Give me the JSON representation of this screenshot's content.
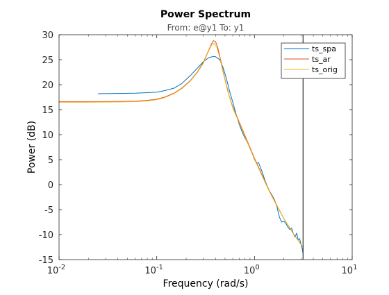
{
  "chart_data": {
    "type": "line",
    "title": "Power Spectrum",
    "subtitle": "From: e@y1  To: y1",
    "xlabel": "Frequency  (rad/s)",
    "ylabel": "Power (dB)",
    "xscale": "log",
    "xlim": [
      0.01,
      10
    ],
    "ylim": [
      -15,
      30
    ],
    "x_ticks": [
      {
        "value": 0.01,
        "base": "10",
        "exp": "-2"
      },
      {
        "value": 0.1,
        "base": "10",
        "exp": "-1"
      },
      {
        "value": 1,
        "base": "10",
        "exp": "0"
      },
      {
        "value": 10,
        "base": "10",
        "exp": "1"
      }
    ],
    "y_ticks": [
      -15,
      -10,
      -5,
      0,
      5,
      10,
      15,
      20,
      25,
      30
    ],
    "grid": false,
    "legend_position": "top-right",
    "vertical_line_x": 3.14,
    "series": [
      {
        "name": "ts_spa",
        "color": "#0072BD",
        "points": [
          [
            0.025,
            18.2
          ],
          [
            0.04,
            18.25
          ],
          [
            0.06,
            18.3
          ],
          [
            0.08,
            18.4
          ],
          [
            0.1,
            18.5
          ],
          [
            0.12,
            18.8
          ],
          [
            0.15,
            19.3
          ],
          [
            0.18,
            20.2
          ],
          [
            0.22,
            21.8
          ],
          [
            0.26,
            23.3
          ],
          [
            0.3,
            24.6
          ],
          [
            0.34,
            25.4
          ],
          [
            0.37,
            25.6
          ],
          [
            0.4,
            25.6
          ],
          [
            0.44,
            25.0
          ],
          [
            0.48,
            23.3
          ],
          [
            0.52,
            21.0
          ],
          [
            0.56,
            18.5
          ],
          [
            0.6,
            16.5
          ],
          [
            0.65,
            14.0
          ],
          [
            0.7,
            12.0
          ],
          [
            0.75,
            10.5
          ],
          [
            0.8,
            9.3
          ],
          [
            0.85,
            8.4
          ],
          [
            0.9,
            7.4
          ],
          [
            0.95,
            6.2
          ],
          [
            1.0,
            5.0
          ],
          [
            1.05,
            4.3
          ],
          [
            1.1,
            4.4
          ],
          [
            1.15,
            3.5
          ],
          [
            1.2,
            2.5
          ],
          [
            1.3,
            0.5
          ],
          [
            1.4,
            -1.0
          ],
          [
            1.5,
            -2.0
          ],
          [
            1.6,
            -3.0
          ],
          [
            1.7,
            -4.5
          ],
          [
            1.8,
            -6.5
          ],
          [
            1.9,
            -7.5
          ],
          [
            2.0,
            -7.3
          ],
          [
            2.1,
            -7.8
          ],
          [
            2.2,
            -8.5
          ],
          [
            2.3,
            -9.0
          ],
          [
            2.4,
            -8.7
          ],
          [
            2.5,
            -9.8
          ],
          [
            2.6,
            -10.5
          ],
          [
            2.7,
            -9.7
          ],
          [
            2.8,
            -11.0
          ],
          [
            2.9,
            -10.8
          ],
          [
            3.0,
            -12.0
          ],
          [
            3.1,
            -13.0
          ],
          [
            3.14,
            -13.8
          ]
        ]
      },
      {
        "name": "ts_ar",
        "color": "#D95319",
        "points": [
          [
            0.01,
            16.6
          ],
          [
            0.02,
            16.6
          ],
          [
            0.04,
            16.65
          ],
          [
            0.06,
            16.7
          ],
          [
            0.08,
            16.85
          ],
          [
            0.1,
            17.1
          ],
          [
            0.12,
            17.5
          ],
          [
            0.15,
            18.3
          ],
          [
            0.18,
            19.3
          ],
          [
            0.22,
            20.8
          ],
          [
            0.26,
            22.5
          ],
          [
            0.3,
            24.5
          ],
          [
            0.33,
            26.3
          ],
          [
            0.36,
            28.0
          ],
          [
            0.38,
            28.8
          ],
          [
            0.4,
            28.6
          ],
          [
            0.42,
            27.5
          ],
          [
            0.45,
            25.0
          ],
          [
            0.5,
            21.0
          ],
          [
            0.55,
            17.8
          ],
          [
            0.6,
            15.5
          ],
          [
            0.7,
            12.5
          ],
          [
            0.8,
            9.8
          ],
          [
            0.9,
            7.4
          ],
          [
            1.0,
            5.3
          ],
          [
            1.2,
            1.9
          ],
          [
            1.4,
            -1.0
          ],
          [
            1.7,
            -4.2
          ],
          [
            2.0,
            -6.8
          ],
          [
            2.5,
            -9.8
          ],
          [
            3.0,
            -12.0
          ],
          [
            3.14,
            -12.5
          ]
        ]
      },
      {
        "name": "ts_orig",
        "color": "#EDB120",
        "points": [
          [
            0.01,
            16.5
          ],
          [
            0.02,
            16.5
          ],
          [
            0.04,
            16.55
          ],
          [
            0.06,
            16.6
          ],
          [
            0.08,
            16.75
          ],
          [
            0.1,
            17.0
          ],
          [
            0.12,
            17.4
          ],
          [
            0.15,
            18.2
          ],
          [
            0.18,
            19.2
          ],
          [
            0.22,
            20.7
          ],
          [
            0.26,
            22.4
          ],
          [
            0.3,
            24.3
          ],
          [
            0.33,
            26.2
          ],
          [
            0.36,
            27.8
          ],
          [
            0.385,
            28.3
          ],
          [
            0.41,
            27.6
          ],
          [
            0.44,
            25.5
          ],
          [
            0.48,
            22.3
          ],
          [
            0.53,
            18.8
          ],
          [
            0.6,
            15.3
          ],
          [
            0.7,
            12.3
          ],
          [
            0.8,
            9.5
          ],
          [
            0.9,
            7.2
          ],
          [
            1.0,
            5.1
          ],
          [
            1.2,
            1.7
          ],
          [
            1.4,
            -1.1
          ],
          [
            1.7,
            -4.3
          ],
          [
            2.0,
            -6.8
          ],
          [
            2.5,
            -9.8
          ],
          [
            3.0,
            -12.0
          ],
          [
            3.14,
            -12.5
          ]
        ]
      }
    ]
  }
}
